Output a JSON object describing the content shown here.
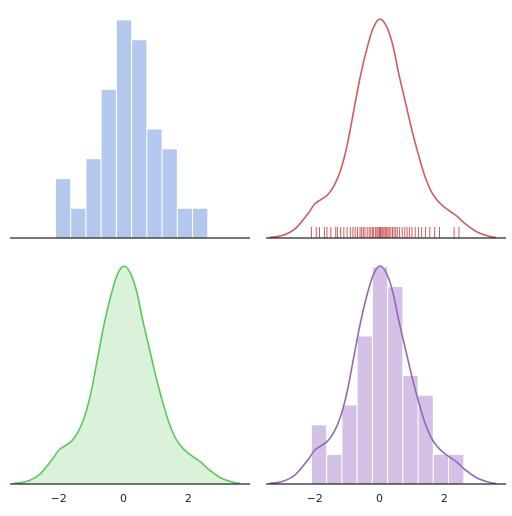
{
  "colors": {
    "hist_blue": "#b4c8ee",
    "kde_red": "#cf5c5c",
    "kde_green": "#5bc85b",
    "kde_green_fill": "#d9f2d9",
    "hist_purple": "#d3c2e5",
    "kde_purple": "#9468b4",
    "axis": "#262626",
    "bar_edge": "#ffffff"
  },
  "chart_data": [
    {
      "type": "bar",
      "panel": "top-left",
      "style": "histogram",
      "bin_edges": [
        -2.1,
        -1.63,
        -1.16,
        -0.69,
        -0.22,
        0.25,
        0.72,
        1.19,
        1.66,
        2.13,
        2.6
      ],
      "values": [
        3,
        1.5,
        4,
        7.5,
        11,
        10,
        5.5,
        4.5,
        1.5,
        1.5
      ],
      "xlim": [
        -3.5,
        3.9
      ],
      "ylim": [
        0,
        11.5
      ],
      "grid": false,
      "xticks": [],
      "yticks": []
    },
    {
      "type": "line",
      "panel": "top-right",
      "style": "kde with rug",
      "x": [
        -3.4,
        -3.0,
        -2.6,
        -2.2,
        -2.0,
        -1.8,
        -1.6,
        -1.4,
        -1.2,
        -1.0,
        -0.8,
        -0.6,
        -0.4,
        -0.2,
        0.0,
        0.2,
        0.4,
        0.6,
        0.8,
        1.0,
        1.2,
        1.4,
        1.6,
        1.8,
        2.0,
        2.2,
        2.4,
        2.6,
        3.0,
        3.4,
        3.6
      ],
      "y": [
        0.002,
        0.008,
        0.03,
        0.08,
        0.11,
        0.125,
        0.14,
        0.17,
        0.22,
        0.3,
        0.41,
        0.52,
        0.61,
        0.68,
        0.71,
        0.69,
        0.63,
        0.53,
        0.44,
        0.35,
        0.27,
        0.2,
        0.15,
        0.12,
        0.1,
        0.085,
        0.07,
        0.05,
        0.02,
        0.005,
        0.002
      ],
      "rug": [
        -2.1,
        -1.95,
        -1.85,
        -1.7,
        -1.62,
        -1.5,
        -1.35,
        -1.3,
        -1.2,
        -1.1,
        -1.0,
        -0.9,
        -0.82,
        -0.75,
        -0.68,
        -0.6,
        -0.55,
        -0.5,
        -0.45,
        -0.38,
        -0.32,
        -0.27,
        -0.22,
        -0.18,
        -0.12,
        -0.08,
        -0.04,
        0.0,
        0.03,
        0.07,
        0.1,
        0.14,
        0.18,
        0.22,
        0.26,
        0.3,
        0.35,
        0.4,
        0.45,
        0.5,
        0.55,
        0.62,
        0.7,
        0.78,
        0.85,
        0.92,
        1.0,
        1.1,
        1.2,
        1.3,
        1.42,
        1.55,
        1.7,
        1.85,
        2.3,
        2.45
      ],
      "xlim": [
        -3.5,
        3.9
      ],
      "ylim": [
        0,
        0.74
      ],
      "grid": false,
      "xticks": [],
      "yticks": []
    },
    {
      "type": "area",
      "panel": "bottom-left",
      "style": "shaded kde",
      "x": [
        -3.4,
        -3.0,
        -2.6,
        -2.2,
        -2.0,
        -1.8,
        -1.6,
        -1.4,
        -1.2,
        -1.0,
        -0.8,
        -0.6,
        -0.4,
        -0.2,
        0.0,
        0.2,
        0.4,
        0.6,
        0.8,
        1.0,
        1.2,
        1.4,
        1.6,
        1.8,
        2.0,
        2.2,
        2.4,
        2.6,
        3.0,
        3.4,
        3.6
      ],
      "y": [
        0.002,
        0.008,
        0.03,
        0.08,
        0.11,
        0.125,
        0.14,
        0.17,
        0.22,
        0.3,
        0.41,
        0.52,
        0.61,
        0.68,
        0.71,
        0.69,
        0.63,
        0.53,
        0.44,
        0.35,
        0.27,
        0.2,
        0.15,
        0.12,
        0.1,
        0.085,
        0.07,
        0.05,
        0.02,
        0.005,
        0.002
      ],
      "xlim": [
        -3.5,
        3.9
      ],
      "ylim": [
        0,
        0.74
      ],
      "grid": false,
      "xticks": [
        -2,
        0,
        2
      ],
      "xtick_labels": [
        "−2",
        "0",
        "2"
      ],
      "yticks": []
    },
    {
      "type": "bar",
      "panel": "bottom-right",
      "style": "histogram with kde",
      "bin_edges": [
        -2.1,
        -1.63,
        -1.16,
        -0.69,
        -0.22,
        0.25,
        0.72,
        1.19,
        1.66,
        2.13,
        2.6
      ],
      "values": [
        3,
        1.5,
        4,
        7.5,
        11,
        10,
        5.5,
        4.5,
        1.5,
        1.5
      ],
      "kde": {
        "x": [
          -3.4,
          -3.0,
          -2.6,
          -2.2,
          -2.0,
          -1.8,
          -1.6,
          -1.4,
          -1.2,
          -1.0,
          -0.8,
          -0.6,
          -0.4,
          -0.2,
          0.0,
          0.2,
          0.4,
          0.6,
          0.8,
          1.0,
          1.2,
          1.4,
          1.6,
          1.8,
          2.0,
          2.2,
          2.4,
          2.6,
          3.0,
          3.4,
          3.6
        ],
        "y": [
          0.002,
          0.008,
          0.03,
          0.08,
          0.11,
          0.125,
          0.14,
          0.17,
          0.22,
          0.3,
          0.41,
          0.52,
          0.61,
          0.68,
          0.71,
          0.69,
          0.63,
          0.53,
          0.44,
          0.35,
          0.27,
          0.2,
          0.15,
          0.12,
          0.1,
          0.085,
          0.07,
          0.05,
          0.02,
          0.005,
          0.002
        ]
      },
      "xlim": [
        -3.5,
        3.9
      ],
      "ylim": [
        0,
        11.5
      ],
      "kde_ylim": [
        0,
        0.74
      ],
      "grid": false,
      "xticks": [
        -2,
        0,
        2
      ],
      "xtick_labels": [
        "−2",
        "0",
        "2"
      ],
      "yticks": []
    }
  ]
}
